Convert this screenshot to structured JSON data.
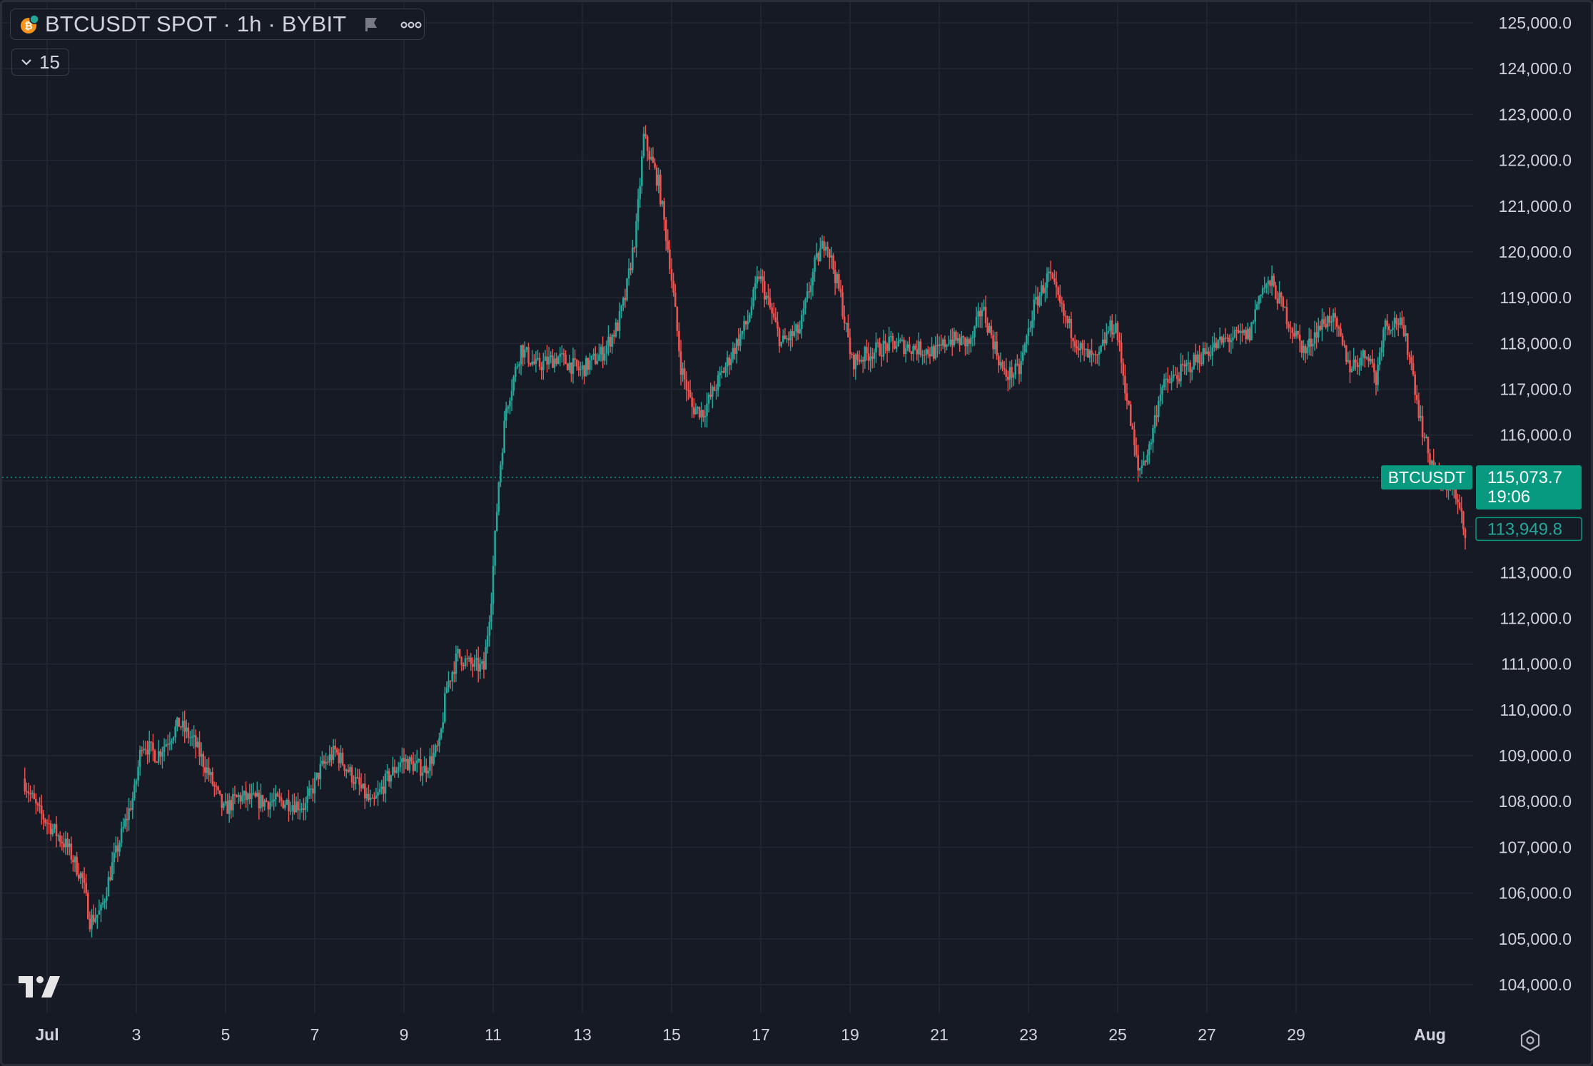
{
  "header": {
    "symbol_title": "BTCUSDT SPOT · 1h · BYBIT",
    "indicator_count": "15"
  },
  "icons": [
    "bitcoin-coin-icon",
    "flag-icon",
    "more-dots-icon",
    "chevron-down-icon",
    "tradingview-logo",
    "settings-icon"
  ],
  "colors": {
    "background": "#161a25",
    "grid": "#232733",
    "up": "#26a69a",
    "down": "#ef5350",
    "axis_text": "#d1d4dc",
    "price_tag": "#089981"
  },
  "chart_data": {
    "type": "candlestick",
    "symbol": "BTCUSDT",
    "interval": "1h",
    "exchange": "BYBIT",
    "x_tick_labels": [
      "Jul",
      "3",
      "5",
      "7",
      "9",
      "11",
      "13",
      "15",
      "17",
      "19",
      "21",
      "23",
      "25",
      "27",
      "29",
      "Aug"
    ],
    "y_ticks": [
      104000,
      105000,
      106000,
      107000,
      108000,
      109000,
      110000,
      111000,
      112000,
      113000,
      114000,
      115000,
      116000,
      117000,
      118000,
      119000,
      120000,
      121000,
      122000,
      123000,
      124000,
      125000
    ],
    "y_tick_labels": [
      "104,000.0",
      "105,000.0",
      "106,000.0",
      "107,000.0",
      "108,000.0",
      "109,000.0",
      "110,000.0",
      "111,000.0",
      "112,000.0",
      "113,000.0",
      "114,000.0",
      "115,000.0",
      "116,000.0",
      "117,000.0",
      "118,000.0",
      "119,000.0",
      "120,000.0",
      "121,000.0",
      "122,000.0",
      "123,000.0",
      "124,000.0",
      "125,000.0"
    ],
    "x_range": [
      "2025-06-30",
      "2025-08-02"
    ],
    "ylim": [
      103300,
      125500
    ],
    "grid": true,
    "last_price": {
      "label": "BTCUSDT",
      "value": "115,073.7",
      "countdown": "19:06"
    },
    "second_price": {
      "value": "113,949.8"
    },
    "path": [
      [
        "2025-06-30 12:00",
        108500
      ],
      [
        "2025-06-30 20:00",
        107800
      ],
      [
        "2025-07-01 04:00",
        107400
      ],
      [
        "2025-07-01 12:00",
        107000
      ],
      [
        "2025-07-01 20:00",
        106300
      ],
      [
        "2025-07-02 00:00",
        105400
      ],
      [
        "2025-07-02 06:00",
        105600
      ],
      [
        "2025-07-02 12:00",
        106600
      ],
      [
        "2025-07-02 18:00",
        107400
      ],
      [
        "2025-07-03 00:00",
        108200
      ],
      [
        "2025-07-03 04:00",
        109300
      ],
      [
        "2025-07-03 12:00",
        109000
      ],
      [
        "2025-07-04 00:00",
        109700
      ],
      [
        "2025-07-04 08:00",
        109300
      ],
      [
        "2025-07-04 16:00",
        108600
      ],
      [
        "2025-07-05 00:00",
        107800
      ],
      [
        "2025-07-05 08:00",
        108100
      ],
      [
        "2025-07-05 20:00",
        108000
      ],
      [
        "2025-07-06 08:00",
        108000
      ],
      [
        "2025-07-06 20:00",
        107900
      ],
      [
        "2025-07-07 04:00",
        108700
      ],
      [
        "2025-07-07 12:00",
        109100
      ],
      [
        "2025-07-07 22:00",
        108500
      ],
      [
        "2025-07-08 08:00",
        107900
      ],
      [
        "2025-07-08 16:00",
        108500
      ],
      [
        "2025-07-09 00:00",
        108900
      ],
      [
        "2025-07-09 12:00",
        108700
      ],
      [
        "2025-07-09 20:00",
        109200
      ],
      [
        "2025-07-10 00:00",
        110500
      ],
      [
        "2025-07-10 06:00",
        111200
      ],
      [
        "2025-07-10 12:00",
        111000
      ],
      [
        "2025-07-10 20:00",
        110900
      ],
      [
        "2025-07-11 00:00",
        112500
      ],
      [
        "2025-07-11 04:00",
        115000
      ],
      [
        "2025-07-11 08:00",
        116600
      ],
      [
        "2025-07-11 16:00",
        117900
      ],
      [
        "2025-07-12 00:00",
        117500
      ],
      [
        "2025-07-12 12:00",
        117700
      ],
      [
        "2025-07-13 00:00",
        117400
      ],
      [
        "2025-07-13 12:00",
        117800
      ],
      [
        "2025-07-13 20:00",
        118400
      ],
      [
        "2025-07-14 00:00",
        119000
      ],
      [
        "2025-07-14 06:00",
        120500
      ],
      [
        "2025-07-14 10:00",
        122500
      ],
      [
        "2025-07-14 18:00",
        121500
      ],
      [
        "2025-07-15 00:00",
        119800
      ],
      [
        "2025-07-15 06:00",
        117500
      ],
      [
        "2025-07-15 12:00",
        116600
      ],
      [
        "2025-07-15 18:00",
        116500
      ],
      [
        "2025-07-16 06:00",
        117500
      ],
      [
        "2025-07-16 18:00",
        118500
      ],
      [
        "2025-07-17 00:00",
        119500
      ],
      [
        "2025-07-17 12:00",
        118000
      ],
      [
        "2025-07-17 22:00",
        118300
      ],
      [
        "2025-07-18 06:00",
        119700
      ],
      [
        "2025-07-18 12:00",
        120300
      ],
      [
        "2025-07-18 20:00",
        119000
      ],
      [
        "2025-07-19 02:00",
        117600
      ],
      [
        "2025-07-19 12:00",
        117800
      ],
      [
        "2025-07-20 00:00",
        118000
      ],
      [
        "2025-07-20 12:00",
        117900
      ],
      [
        "2025-07-21 00:00",
        117800
      ],
      [
        "2025-07-21 06:00",
        118100
      ],
      [
        "2025-07-21 18:00",
        118000
      ],
      [
        "2025-07-22 00:00",
        118800
      ],
      [
        "2025-07-22 12:00",
        117300
      ],
      [
        "2025-07-22 20:00",
        117400
      ],
      [
        "2025-07-23 04:00",
        118800
      ],
      [
        "2025-07-23 12:00",
        119500
      ],
      [
        "2025-07-23 20:00",
        118600
      ],
      [
        "2025-07-24 06:00",
        117800
      ],
      [
        "2025-07-24 14:00",
        117600
      ],
      [
        "2025-07-24 20:00",
        118300
      ],
      [
        "2025-07-25 00:00",
        118400
      ],
      [
        "2025-07-25 06:00",
        116800
      ],
      [
        "2025-07-25 12:00",
        115200
      ],
      [
        "2025-07-25 18:00",
        115700
      ],
      [
        "2025-07-26 00:00",
        117000
      ],
      [
        "2025-07-26 12:00",
        117400
      ],
      [
        "2025-07-27 00:00",
        117800
      ],
      [
        "2025-07-27 12:00",
        118100
      ],
      [
        "2025-07-28 00:00",
        118200
      ],
      [
        "2025-07-28 06:00",
        119200
      ],
      [
        "2025-07-28 12:00",
        119300
      ],
      [
        "2025-07-28 22:00",
        118400
      ],
      [
        "2025-07-29 06:00",
        117800
      ],
      [
        "2025-07-29 12:00",
        118300
      ],
      [
        "2025-07-29 20:00",
        118600
      ],
      [
        "2025-07-30 06:00",
        117500
      ],
      [
        "2025-07-30 16:00",
        117800
      ],
      [
        "2025-07-30 20:00",
        117200
      ],
      [
        "2025-07-31 00:00",
        118400
      ],
      [
        "2025-07-31 08:00",
        118500
      ],
      [
        "2025-07-31 14:00",
        117800
      ],
      [
        "2025-07-31 20:00",
        116300
      ],
      [
        "2025-08-01 00:00",
        115600
      ],
      [
        "2025-08-01 08:00",
        114800
      ],
      [
        "2025-08-01 12:00",
        115000
      ],
      [
        "2025-08-01 18:00",
        114200
      ],
      [
        "2025-08-01 19:00",
        113900
      ]
    ]
  }
}
